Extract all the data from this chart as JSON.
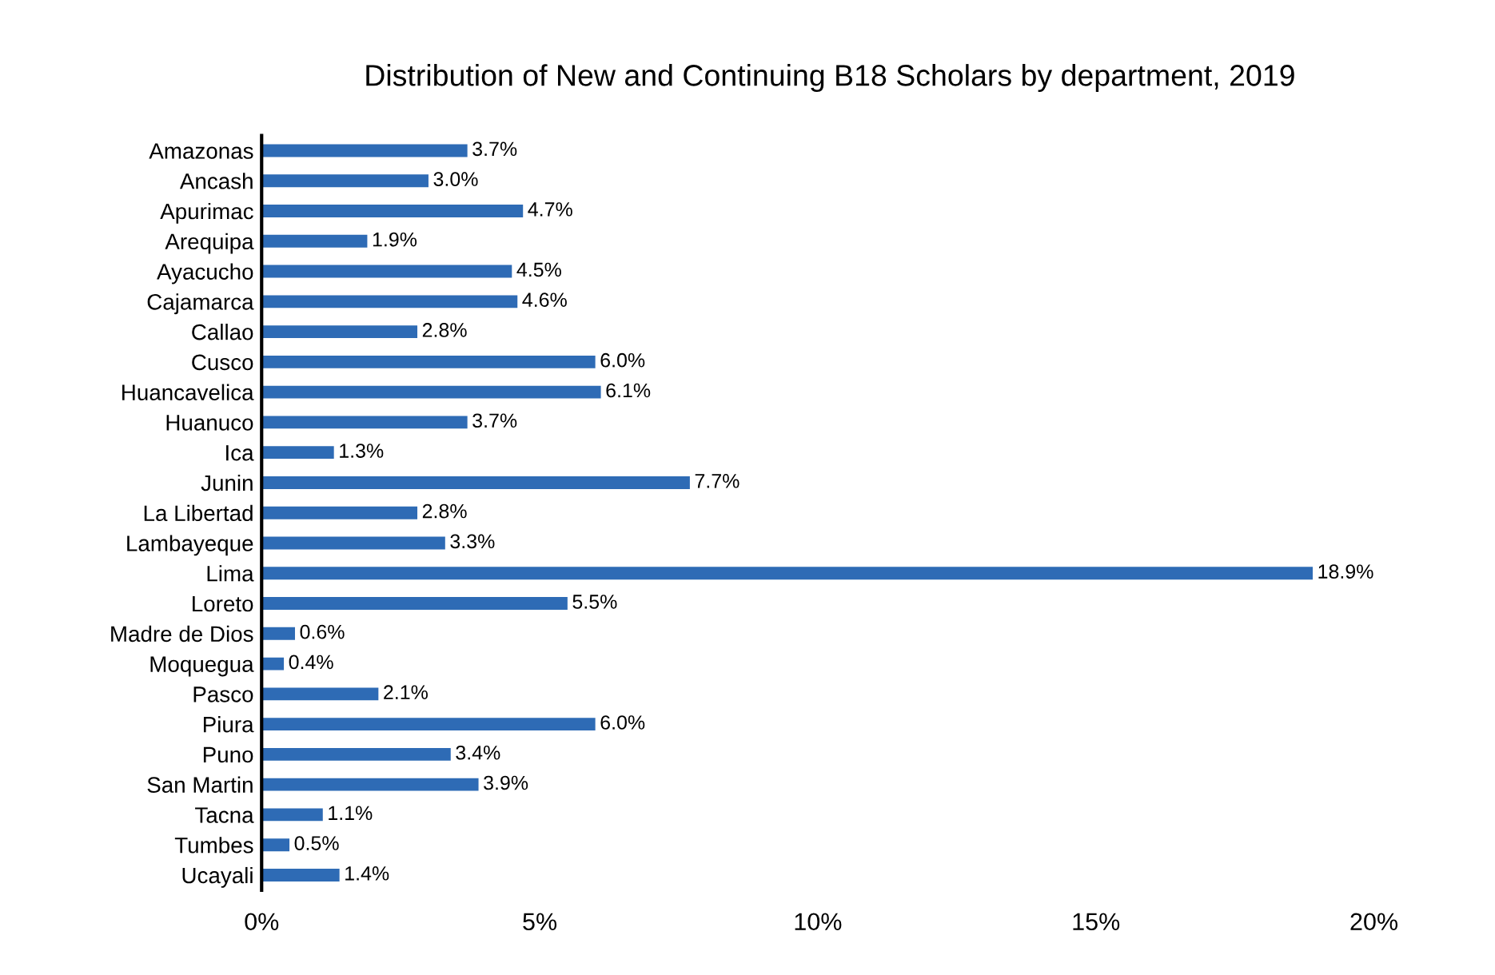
{
  "chart_data": {
    "type": "bar",
    "orientation": "horizontal",
    "title": "Distribution of New and Continuing B18 Scholars by department, 2019",
    "categories": [
      "Amazonas",
      "Ancash",
      "Apurimac",
      "Arequipa",
      "Ayacucho",
      "Cajamarca",
      "Callao",
      "Cusco",
      "Huancavelica",
      "Huanuco",
      "Ica",
      "Junin",
      "La Libertad",
      "Lambayeque",
      "Lima",
      "Loreto",
      "Madre de Dios",
      "Moquegua",
      "Pasco",
      "Piura",
      "Puno",
      "San Martin",
      "Tacna",
      "Tumbes",
      "Ucayali"
    ],
    "values": [
      3.7,
      3.0,
      4.7,
      1.9,
      4.5,
      4.6,
      2.8,
      6.0,
      6.1,
      3.7,
      1.3,
      7.7,
      2.8,
      3.3,
      18.9,
      5.5,
      0.6,
      0.4,
      2.1,
      6.0,
      3.4,
      3.9,
      1.1,
      0.5,
      1.4
    ],
    "value_labels": [
      "3.7%",
      "3.0%",
      "4.7%",
      "1.9%",
      "4.5%",
      "4.6%",
      "2.8%",
      "6.0%",
      "6.1%",
      "3.7%",
      "1.3%",
      "7.7%",
      "2.8%",
      "3.3%",
      "18.9%",
      "5.5%",
      "0.6%",
      "0.4%",
      "2.1%",
      "6.0%",
      "3.4%",
      "3.9%",
      "1.1%",
      "0.5%",
      "1.4%"
    ],
    "color": "#2e6bb5",
    "xlim": [
      0,
      20
    ],
    "xticks": [
      {
        "value": 0,
        "label": "0%"
      },
      {
        "value": 5,
        "label": "5%"
      },
      {
        "value": 10,
        "label": "10%"
      },
      {
        "value": 15,
        "label": "15%"
      },
      {
        "value": 20,
        "label": "20%"
      }
    ],
    "grid": false,
    "legend": false
  }
}
